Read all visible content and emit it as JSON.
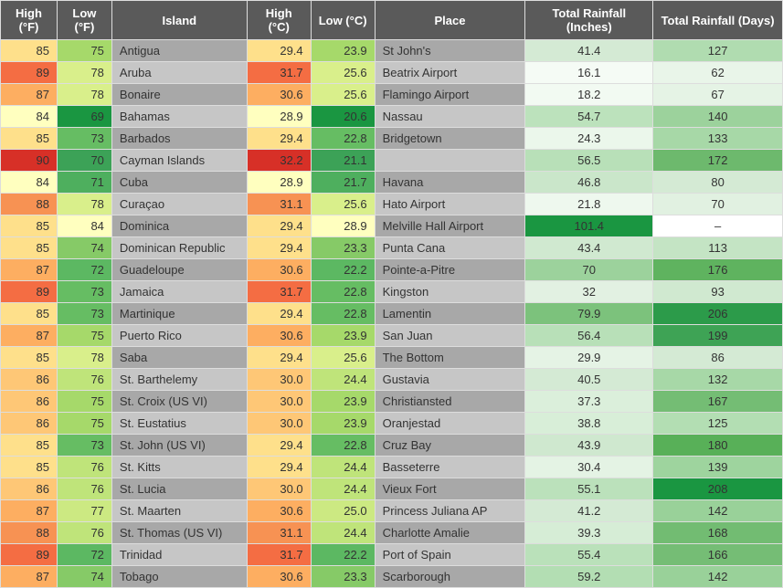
{
  "table": {
    "columns": [
      "High (°F)",
      "Low (°F)",
      "Island",
      "High (°C)",
      "Low (°C)",
      "Place",
      "Total Rainfall (Inches)",
      "Total Rainfall (Days)"
    ],
    "col_align": [
      "num",
      "num",
      "txt",
      "num",
      "num",
      "txt",
      "rain",
      "rain"
    ],
    "col_classes": [
      "col-hf",
      "col-lf",
      "col-island",
      "col-hc",
      "col-lc",
      "col-place",
      "col-ri",
      "col-rd"
    ],
    "island_colors": {
      "even": "#a8a8a8",
      "odd": "#c6c6c6"
    },
    "place_colors": {
      "even": "#a8a8a8",
      "odd": "#c6c6c6"
    },
    "rows": [
      {
        "hf": 85,
        "lf": 75,
        "island": "Antigua",
        "hc": "29.4",
        "lc": "23.9",
        "place": "St John's",
        "ri": "41.4",
        "rd": "127",
        "c_hf": "#fee08b",
        "c_lf": "#a6d96a",
        "c_hc": "#fee08b",
        "c_lc": "#a6d96a",
        "c_ri": "#d4ead4",
        "c_rd": "#b0dcb0"
      },
      {
        "hf": 89,
        "lf": 78,
        "island": "Aruba",
        "hc": "31.7",
        "lc": "25.6",
        "place": "Beatrix Airport",
        "ri": "16.1",
        "rd": "62",
        "c_hf": "#f46d43",
        "c_lf": "#d9ef8b",
        "c_hc": "#f46d43",
        "c_lc": "#d9ef8b",
        "c_ri": "#f5fbf5",
        "c_rd": "#e9f5e9"
      },
      {
        "hf": 87,
        "lf": 78,
        "island": "Bonaire",
        "hc": "30.6",
        "lc": "25.6",
        "place": "Flamingo Airport",
        "ri": "18.2",
        "rd": "67",
        "c_hf": "#fdae61",
        "c_lf": "#d9ef8b",
        "c_hc": "#fdae61",
        "c_lc": "#d9ef8b",
        "c_ri": "#f2faf2",
        "c_rd": "#e5f3e5"
      },
      {
        "hf": 84,
        "lf": 69,
        "island": "Bahamas",
        "hc": "28.9",
        "lc": "20.6",
        "place": "Nassau",
        "ri": "54.7",
        "rd": "140",
        "c_hf": "#ffffbf",
        "c_lf": "#1a9641",
        "c_hc": "#ffffbf",
        "c_lc": "#1a9641",
        "c_ri": "#bce2bc",
        "c_rd": "#9cd29c"
      },
      {
        "hf": 85,
        "lf": 73,
        "island": "Barbados",
        "hc": "29.4",
        "lc": "22.8",
        "place": "Bridgetown",
        "ri": "24.3",
        "rd": "133",
        "c_hf": "#fee08b",
        "c_lf": "#66bd63",
        "c_hc": "#fee08b",
        "c_lc": "#66bd63",
        "c_ri": "#ebf7eb",
        "c_rd": "#a7d8a7"
      },
      {
        "hf": 90,
        "lf": 70,
        "island": "Cayman Islands",
        "hc": "32.2",
        "lc": "21.1",
        "place": "",
        "ri": "56.5",
        "rd": "172",
        "c_hf": "#d73027",
        "c_lf": "#3ca257",
        "c_hc": "#d73027",
        "c_lc": "#3ca257",
        "c_ri": "#b8e0b8",
        "c_rd": "#6db96d"
      },
      {
        "hf": 84,
        "lf": 71,
        "island": "Cuba",
        "hc": "28.9",
        "lc": "21.7",
        "place": "Havana",
        "ri": "46.8",
        "rd": "80",
        "c_hf": "#ffffbf",
        "c_lf": "#4eaf5e",
        "c_hc": "#ffffbf",
        "c_lc": "#4eaf5e",
        "c_ri": "#cae6ca",
        "c_rd": "#d4ead4"
      },
      {
        "hf": 88,
        "lf": 78,
        "island": "Curaçao",
        "hc": "31.1",
        "lc": "25.6",
        "place": "Hato Airport",
        "ri": "21.8",
        "rd": "70",
        "c_hf": "#f79253",
        "c_lf": "#d9ef8b",
        "c_hc": "#f79253",
        "c_lc": "#d9ef8b",
        "c_ri": "#eef8ee",
        "c_rd": "#e1f1e1"
      },
      {
        "hf": 85,
        "lf": 84,
        "island": "Dominica",
        "hc": "29.4",
        "lc": "28.9",
        "place": "Melville Hall Airport",
        "ri": "101.4",
        "rd": "–",
        "c_hf": "#fee08b",
        "c_lf": "#ffffbf",
        "c_hc": "#fee08b",
        "c_lc": "#ffffbf",
        "c_ri": "#1a9641",
        "c_rd": "#ffffff"
      },
      {
        "hf": 85,
        "lf": 74,
        "island": "Dominican Republic",
        "hc": "29.4",
        "lc": "23.3",
        "place": "Punta Cana",
        "ri": "43.4",
        "rd": "113",
        "c_hf": "#fee08b",
        "c_lf": "#86ca67",
        "c_hc": "#fee08b",
        "c_lc": "#86ca67",
        "c_ri": "#d0e9d0",
        "c_rd": "#c4e4c4"
      },
      {
        "hf": 87,
        "lf": 72,
        "island": "Guadeloupe",
        "hc": "30.6",
        "lc": "22.2",
        "place": "Pointe-a-Pitre",
        "ri": "70",
        "rd": "176",
        "c_hf": "#fdae61",
        "c_lf": "#5cb862",
        "c_hc": "#fdae61",
        "c_lc": "#5cb862",
        "c_ri": "#9cd29c",
        "c_rd": "#5fb35f"
      },
      {
        "hf": 89,
        "lf": 73,
        "island": "Jamaica",
        "hc": "31.7",
        "lc": "22.8",
        "place": "Kingston",
        "ri": "32",
        "rd": "93",
        "c_hf": "#f46d43",
        "c_lf": "#66bd63",
        "c_hc": "#f46d43",
        "c_lc": "#66bd63",
        "c_ri": "#e2f1e2",
        "c_rd": "#d0e9d0"
      },
      {
        "hf": 85,
        "lf": 73,
        "island": "Martinique",
        "hc": "29.4",
        "lc": "22.8",
        "place": "Lamentin",
        "ri": "79.9",
        "rd": "206",
        "c_hf": "#fee08b",
        "c_lf": "#66bd63",
        "c_hc": "#fee08b",
        "c_lc": "#66bd63",
        "c_ri": "#7cc27c",
        "c_rd": "#2c9b4a"
      },
      {
        "hf": 87,
        "lf": 75,
        "island": "Puerto Rico",
        "hc": "30.6",
        "lc": "23.9",
        "place": "San Juan",
        "ri": "56.4",
        "rd": "199",
        "c_hf": "#fdae61",
        "c_lf": "#a6d96a",
        "c_hc": "#fdae61",
        "c_lc": "#a6d96a",
        "c_ri": "#b8e0b8",
        "c_rd": "#3ea355"
      },
      {
        "hf": 85,
        "lf": 78,
        "island": "Saba",
        "hc": "29.4",
        "lc": "25.6",
        "place": "The Bottom",
        "ri": "29.9",
        "rd": "86",
        "c_hf": "#fee08b",
        "c_lf": "#d9ef8b",
        "c_hc": "#fee08b",
        "c_lc": "#d9ef8b",
        "c_ri": "#e5f3e5",
        "c_rd": "#d4ead4"
      },
      {
        "hf": 86,
        "lf": 76,
        "island": "St. Barthelemy",
        "hc": "30.0",
        "lc": "24.4",
        "place": "Gustavia",
        "ri": "40.5",
        "rd": "132",
        "c_hf": "#fec776",
        "c_lf": "#bfe47a",
        "c_hc": "#fec776",
        "c_lc": "#bfe47a",
        "c_ri": "#d4ead4",
        "c_rd": "#a7d8a7"
      },
      {
        "hf": 86,
        "lf": 75,
        "island": "St. Croix (US VI)",
        "hc": "30.0",
        "lc": "23.9",
        "place": "Christiansted",
        "ri": "37.3",
        "rd": "167",
        "c_hf": "#fec776",
        "c_lf": "#a6d96a",
        "c_hc": "#fec776",
        "c_lc": "#a6d96a",
        "c_ri": "#dbefdb",
        "c_rd": "#74bd74"
      },
      {
        "hf": 86,
        "lf": 75,
        "island": "St. Eustatius",
        "hc": "30.0",
        "lc": "23.9",
        "place": "Oranjestad",
        "ri": "38.8",
        "rd": "125",
        "c_hf": "#fec776",
        "c_lf": "#a6d96a",
        "c_hc": "#fec776",
        "c_lc": "#a6d96a",
        "c_ri": "#d8eed8",
        "c_rd": "#b3deb3"
      },
      {
        "hf": 85,
        "lf": 73,
        "island": "St. John (US VI)",
        "hc": "29.4",
        "lc": "22.8",
        "place": "Cruz Bay",
        "ri": "43.9",
        "rd": "180",
        "c_hf": "#fee08b",
        "c_lf": "#66bd63",
        "c_hc": "#fee08b",
        "c_lc": "#66bd63",
        "c_ri": "#cfe8cf",
        "c_rd": "#58b058"
      },
      {
        "hf": 85,
        "lf": 76,
        "island": "St. Kitts",
        "hc": "29.4",
        "lc": "24.4",
        "place": "Basseterre",
        "ri": "30.4",
        "rd": "139",
        "c_hf": "#fee08b",
        "c_lf": "#bfe47a",
        "c_hc": "#fee08b",
        "c_lc": "#bfe47a",
        "c_ri": "#e4f3e4",
        "c_rd": "#9ed49e"
      },
      {
        "hf": 86,
        "lf": 76,
        "island": "St. Lucia",
        "hc": "30.0",
        "lc": "24.4",
        "place": "Vieux Fort",
        "ri": "55.1",
        "rd": "208",
        "c_hf": "#fec776",
        "c_lf": "#bfe47a",
        "c_hc": "#fec776",
        "c_lc": "#bfe47a",
        "c_ri": "#bbe1bb",
        "c_rd": "#1a9641"
      },
      {
        "hf": 87,
        "lf": 77,
        "island": "St. Maarten",
        "hc": "30.6",
        "lc": "25.0",
        "place": "Princess Juliana AP",
        "ri": "41.2",
        "rd": "142",
        "c_hf": "#fdae61",
        "c_lf": "#cce982",
        "c_hc": "#fdae61",
        "c_lc": "#cce982",
        "c_ri": "#d4ead4",
        "c_rd": "#99d199"
      },
      {
        "hf": 88,
        "lf": 76,
        "island": "St. Thomas (US VI)",
        "hc": "31.1",
        "lc": "24.4",
        "place": "Charlotte Amalie",
        "ri": "39.3",
        "rd": "168",
        "c_hf": "#f79253",
        "c_lf": "#bfe47a",
        "c_hc": "#f79253",
        "c_lc": "#bfe47a",
        "c_ri": "#d6edd6",
        "c_rd": "#72bc72"
      },
      {
        "hf": 89,
        "lf": 72,
        "island": "Trinidad",
        "hc": "31.7",
        "lc": "22.2",
        "place": "Port of Spain",
        "ri": "55.4",
        "rd": "166",
        "c_hf": "#f46d43",
        "c_lf": "#5cb862",
        "c_hc": "#f46d43",
        "c_lc": "#5cb862",
        "c_ri": "#bae1ba",
        "c_rd": "#75bd75"
      },
      {
        "hf": 87,
        "lf": 74,
        "island": "Tobago",
        "hc": "30.6",
        "lc": "23.3",
        "place": "Scarborough",
        "ri": "59.2",
        "rd": "142",
        "c_hf": "#fdae61",
        "c_lf": "#86ca67",
        "c_hc": "#fdae61",
        "c_lc": "#86ca67",
        "c_ri": "#b3deb3",
        "c_rd": "#99d199"
      }
    ]
  }
}
